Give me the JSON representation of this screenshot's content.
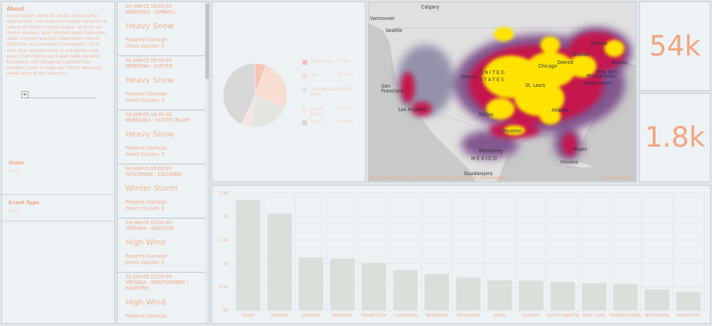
{
  "about": {
    "title": "About",
    "text": "Lorem ipsum dolor sit amet, consectetur adipisci elit, sed eiusmod tempor incidunt ut labore et dolore magna aliqua. Ut enim ad minim veniam, quis nostrum exercitationem ullam corporis suscipit laboriosam, nisi ut aliquid ex ea commodi consequatur. Quis aute iure reprehenderit in voluptate velit esse cillum dolore eu fugiat nulla pariatur. Excepteur sint obcaecat cupiditat non proident, sunt in culpa qui officia deserunt mollit anim id est laborum."
  },
  "filters": [
    {
      "label": "State",
      "value": "None"
    },
    {
      "label": "Event Type",
      "value": "None"
    }
  ],
  "events": [
    {
      "date": "04-JAN-05 18:00:00",
      "location": "NEBRASKA - KIMBALL",
      "type": "Heavy Snow",
      "damage": "Property Damage:",
      "injuries": "Direct Injuries: 0"
    },
    {
      "date": "01-JAN-05 05:00:00",
      "location": "MONTANA - CUSTER",
      "type": "Heavy Snow",
      "damage": "Property Damage:",
      "injuries": "Direct Injuries: 0"
    },
    {
      "date": "04-JAN-05 18:00:00",
      "location": "NEBRASKA - SCOTTS BLUFF",
      "type": "Heavy Snow",
      "damage": "Property Damage:",
      "injuries": "Direct Injuries: 0"
    },
    {
      "date": "06-JAN-05 05:00:00",
      "location": "WISCONSIN - COLUMBIA",
      "type": "Winter Storm",
      "damage": "Property Damage:",
      "injuries": "Direct Injuries: 0"
    },
    {
      "date": "23-JAN-05 02:00:00",
      "location": "VIRGINIA - GRAYSON",
      "type": "High Wind",
      "damage": "Property Damage:",
      "injuries": "Direct Injuries: 0"
    },
    {
      "date": "22-JAN-05 22:00:00",
      "location": "VIRGINIA - MONTGOMERY / RADFORD",
      "type": "High Wind",
      "damage": "Property Damage:",
      "injuries": ""
    }
  ],
  "pie": {
    "legend": [
      {
        "name": "Flash Flood",
        "pct": "5.52%",
        "value": 5.52,
        "color": "#f6c4b2"
      },
      {
        "name": "Hail",
        "pct": "25.63%",
        "value": 25.63,
        "color": "#f7ddd2"
      },
      {
        "name": "Thunderstorm Wind",
        "pct": "20.76%",
        "value": 20.76,
        "color": "#e3e6df"
      },
      {
        "name": "Winter Storm",
        "pct": "5.11%",
        "value": 5.11,
        "color": "#f7e3e0"
      },
      {
        "name": "Other",
        "pct": "43.03%",
        "value": 43.03,
        "color": "#d7d7d7"
      }
    ]
  },
  "map": {
    "labels": {
      "calgary": "Calgary",
      "vancouver": "Vancouver",
      "seattle": "Seattle",
      "ottawa": "Ottawa",
      "toronto": "Toronto",
      "boston": "Boston",
      "chicago": "Chicago",
      "detroit": "Detroit",
      "newyork": "New York",
      "philadelphia": "Philadelphia",
      "washington": "Washington",
      "denver": "Denver",
      "unitedstates": "UNITED STATES",
      "stlouis": "St. Louis",
      "sanfrancisco": "San Francisco",
      "losangeles": "Los Angeles",
      "dallas": "Dallas",
      "atlanta": "Atlanta",
      "houston": "Houston",
      "miami": "Miami",
      "monterrey": "Monterrey",
      "mexico": "MÉXICO",
      "havana": "Havana",
      "guadalajara": "Guadalajara"
    },
    "attribution": "Esri, TomTom, Garmin, FAO, NOAA, USGS, EPA, USFWS | NOAA NCDC",
    "powered": "Powered by Esri"
  },
  "stats": [
    {
      "value": "54k"
    },
    {
      "value": "1.8k"
    }
  ],
  "chart_data": {
    "type": "bar",
    "categories": [
      "TEXAS",
      "KANSAS",
      "GEORGIA",
      "MISSOURI",
      "MINNESOTA",
      "COLORADO",
      "NEBRASKA",
      "OKLAHOMA",
      "IOWA",
      "ILLINOIS",
      "SOUTH DAKOTA",
      "NEW YORK",
      "PENNSYLVANIA",
      "WISCONSIN",
      "MISSISSIPPI"
    ],
    "values": [
      2350,
      2060,
      1130,
      1100,
      1010,
      860,
      770,
      700,
      640,
      630,
      600,
      580,
      560,
      450,
      390
    ],
    "yticks": [
      {
        "value": 0,
        "label": "0k"
      },
      {
        "value": 500,
        "label": "0.5k"
      },
      {
        "value": 1000,
        "label": "1k"
      },
      {
        "value": 1500,
        "label": "1.5k"
      },
      {
        "value": 2000,
        "label": "2k"
      },
      {
        "value": 2500,
        "label": "2.5k"
      }
    ],
    "ylim": [
      0,
      2500
    ],
    "bar_color": "#d9e0da"
  }
}
